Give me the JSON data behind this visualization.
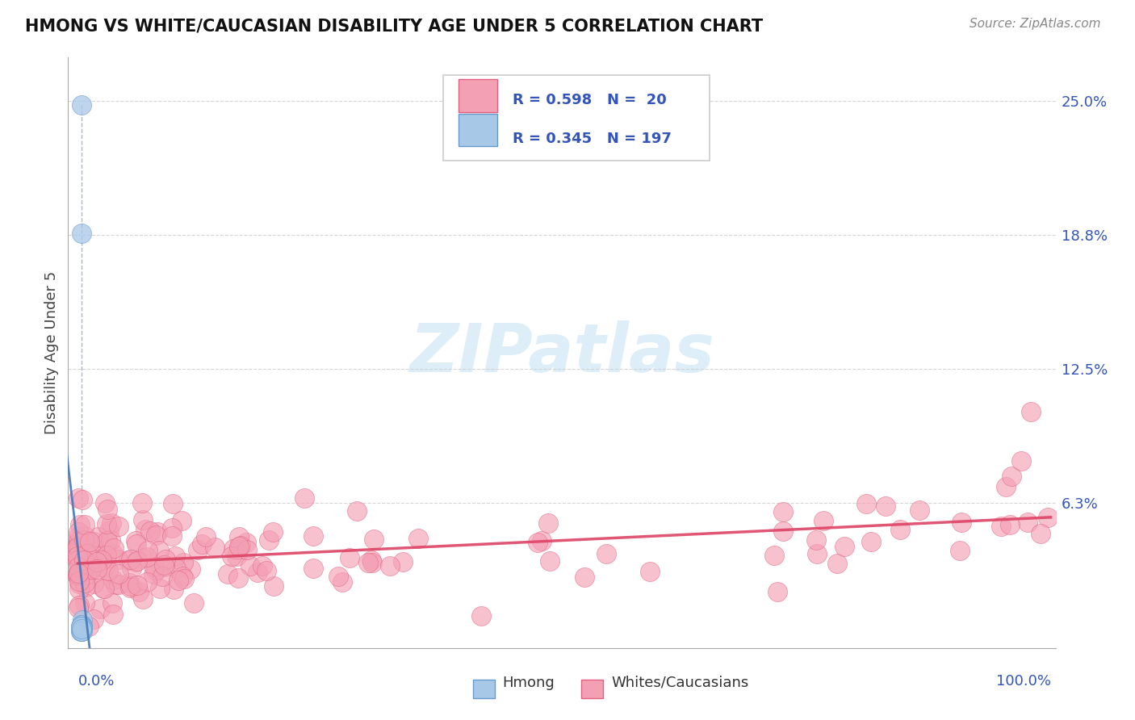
{
  "title": "HMONG VS WHITE/CAUCASIAN DISABILITY AGE UNDER 5 CORRELATION CHART",
  "source": "Source: ZipAtlas.com",
  "ylabel": "Disability Age Under 5",
  "hmong_R": 0.598,
  "hmong_N": 20,
  "white_R": 0.345,
  "white_N": 197,
  "hmong_color": "#a8c8e8",
  "white_color": "#f4a0b4",
  "hmong_edge_color": "#6699cc",
  "white_edge_color": "#e06080",
  "hmong_line_color": "#4477bb",
  "white_line_color": "#dd4466",
  "r_text_color": "#3355bb",
  "watermark_color": "#ddeef8",
  "background_color": "#ffffff",
  "grid_color": "#cccccc",
  "title_color": "#111111",
  "ytick_vals": [
    0.0,
    0.0625,
    0.125,
    0.1875,
    0.25
  ],
  "ytick_labels": [
    "",
    "6.3%",
    "12.5%",
    "18.8%",
    "25.0%"
  ],
  "xmin": 0.0,
  "xmax": 1.0,
  "ymin": -0.005,
  "ymax": 0.27
}
